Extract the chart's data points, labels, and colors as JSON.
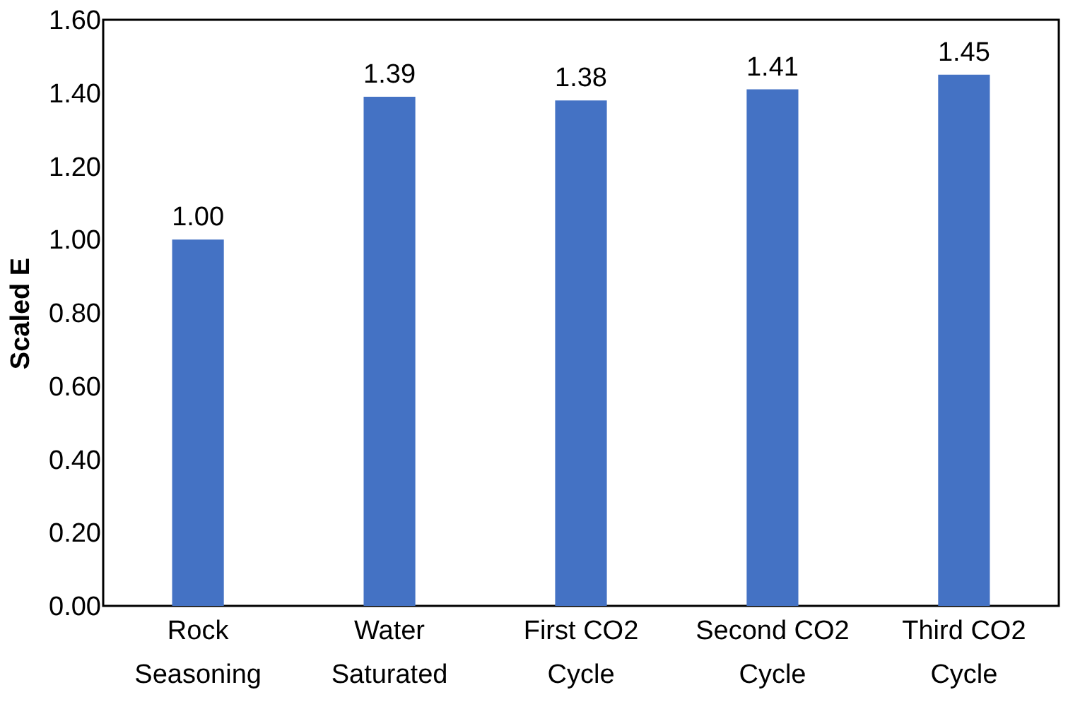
{
  "chart_data": {
    "type": "bar",
    "ylabel": "Scaled E",
    "categories": [
      "Rock Seasoning",
      "Water Saturated",
      "First CO2 Cycle",
      "Second CO2 Cycle",
      "Third CO2 Cycle"
    ],
    "values": [
      1.0,
      1.39,
      1.38,
      1.41,
      1.45
    ],
    "value_labels": [
      "1.00",
      "1.39",
      "1.38",
      "1.41",
      "1.45"
    ],
    "color": "#4472c4",
    "ylim": [
      0,
      1.6
    ],
    "yticks": [
      {
        "value": 0,
        "label": "0.00"
      },
      {
        "value": 0.2,
        "label": "0.20"
      },
      {
        "value": 0.4,
        "label": "0.40"
      },
      {
        "value": 0.6,
        "label": "0.60"
      },
      {
        "value": 0.8,
        "label": "0.80"
      },
      {
        "value": 1.0,
        "label": "1.00"
      },
      {
        "value": 1.2,
        "label": "1.20"
      },
      {
        "value": 1.4,
        "label": "1.40"
      },
      {
        "value": 1.6,
        "label": "1.60"
      }
    ],
    "grid": false
  }
}
